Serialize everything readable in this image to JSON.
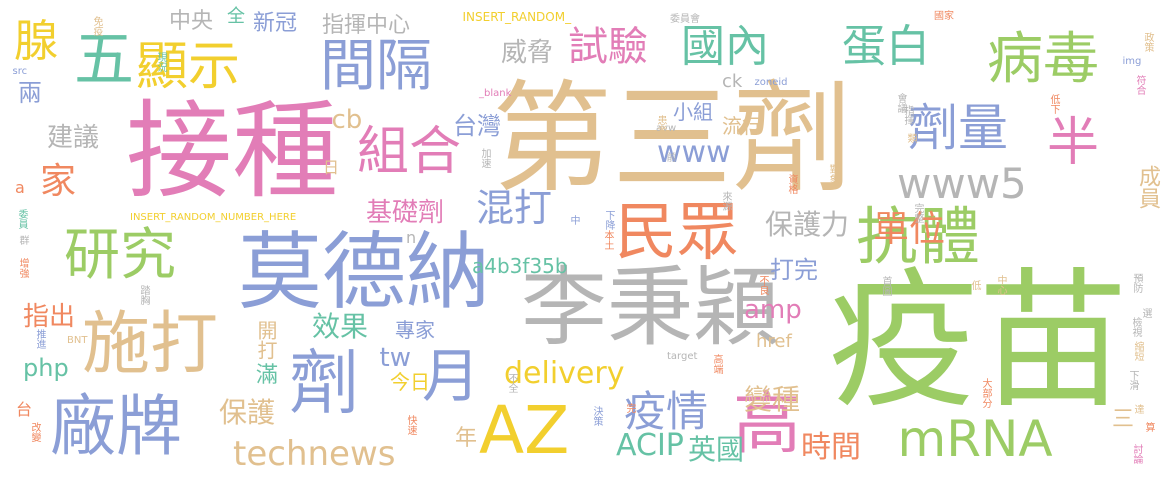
{
  "palette": {
    "green": "#9ccc65",
    "tan": "#e1c08f",
    "pink": "#e27db7",
    "blue": "#8b9ed6",
    "orange": "#f08860",
    "gray": "#b5b5b5",
    "yellow": "#f2cf2e",
    "teal": "#66c2a5"
  },
  "words": [
    {
      "text": "疫苗",
      "color": "green",
      "weight": 10
    },
    {
      "text": "第三劑",
      "color": "tan",
      "weight": 9
    },
    {
      "text": "接種",
      "color": "pink",
      "weight": 8
    },
    {
      "text": "李秉穎",
      "color": "gray",
      "weight": 7
    },
    {
      "text": "莫德納",
      "color": "blue",
      "weight": 7
    },
    {
      "text": "劑",
      "color": "blue",
      "weight": 6
    },
    {
      "text": "高",
      "color": "pink",
      "weight": 6
    },
    {
      "text": "AZ",
      "color": "yellow",
      "weight": 6
    },
    {
      "text": "施打",
      "color": "tan",
      "weight": 6
    },
    {
      "text": "廠牌",
      "color": "blue",
      "weight": 6
    },
    {
      "text": "月",
      "color": "blue",
      "weight": 6
    },
    {
      "text": "民眾",
      "color": "orange",
      "weight": 5
    },
    {
      "text": "抗體",
      "color": "green",
      "weight": 5
    },
    {
      "text": "研究",
      "color": "green",
      "weight": 5
    },
    {
      "text": "病毒",
      "color": "green",
      "weight": 5
    },
    {
      "text": "顯示",
      "color": "yellow",
      "weight": 5
    },
    {
      "text": "五",
      "color": "teal",
      "weight": 5
    },
    {
      "text": "間隔",
      "color": "blue",
      "weight": 5
    },
    {
      "text": "組合",
      "color": "pink",
      "weight": 5
    },
    {
      "text": "劑量",
      "color": "blue",
      "weight": 5
    },
    {
      "text": "半",
      "color": "pink",
      "weight": 5
    },
    {
      "text": "mRNA",
      "color": "green",
      "weight": 5
    },
    {
      "text": "www5",
      "color": "gray",
      "weight": 4
    },
    {
      "text": "國內",
      "color": "teal",
      "weight": 4
    },
    {
      "text": "蛋白",
      "color": "teal",
      "weight": 4
    },
    {
      "text": "試驗",
      "color": "pink",
      "weight": 4
    },
    {
      "text": "混打",
      "color": "blue",
      "weight": 4
    },
    {
      "text": "單位",
      "color": "orange",
      "weight": 4
    },
    {
      "text": "疫情",
      "color": "blue",
      "weight": 4
    },
    {
      "text": "腺",
      "color": "yellow",
      "weight": 4
    },
    {
      "text": "家",
      "color": "orange",
      "weight": 4
    },
    {
      "text": "technews",
      "color": "tan",
      "weight": 4
    },
    {
      "text": "www",
      "color": "blue",
      "weight": 4
    },
    {
      "text": "delivery",
      "color": "yellow",
      "weight": 3
    },
    {
      "text": "ACIP",
      "color": "teal",
      "weight": 3
    },
    {
      "text": "保護力",
      "color": "gray",
      "weight": 3
    },
    {
      "text": "基礎劑",
      "color": "pink",
      "weight": 3
    },
    {
      "text": "保護",
      "color": "tan",
      "weight": 3
    },
    {
      "text": "時間",
      "color": "orange",
      "weight": 3
    },
    {
      "text": "英國",
      "color": "teal",
      "weight": 3
    },
    {
      "text": "變種",
      "color": "tan",
      "weight": 3
    },
    {
      "text": "威脅",
      "color": "gray",
      "weight": 3
    },
    {
      "text": "建議",
      "color": "gray",
      "weight": 3
    },
    {
      "text": "台灣",
      "color": "blue",
      "weight": 3
    },
    {
      "text": "指出",
      "color": "orange",
      "weight": 3
    },
    {
      "text": "效果",
      "color": "teal",
      "weight": 3
    },
    {
      "text": "amp",
      "color": "pink",
      "weight": 3
    },
    {
      "text": "php",
      "color": "teal",
      "weight": 3
    },
    {
      "text": "cb",
      "color": "tan",
      "weight": 3
    },
    {
      "text": "tw",
      "color": "blue",
      "weight": 3
    },
    {
      "text": "打完",
      "color": "blue",
      "weight": 2
    },
    {
      "text": "年",
      "color": "tan",
      "weight": 2
    },
    {
      "text": "兩",
      "color": "blue",
      "weight": 2
    },
    {
      "text": "a4b3f35b",
      "color": "teal",
      "weight": 2
    },
    {
      "text": "流行",
      "color": "tan",
      "weight": 2
    },
    {
      "text": "小組",
      "color": "blue",
      "weight": 2
    },
    {
      "text": "專家",
      "color": "blue",
      "weight": 2
    },
    {
      "text": "開打",
      "color": "tan",
      "weight": 2
    },
    {
      "text": "滿",
      "color": "teal",
      "weight": 2
    },
    {
      "text": "今日",
      "color": "yellow",
      "weight": 2
    },
    {
      "text": "成員",
      "color": "tan",
      "weight": 2
    },
    {
      "text": "三",
      "color": "tan",
      "weight": 2
    },
    {
      "text": "中央",
      "color": "gray",
      "weight": 2
    },
    {
      "text": "新冠",
      "color": "blue",
      "weight": 2
    },
    {
      "text": "全",
      "color": "teal",
      "weight": 2
    },
    {
      "text": "指揮中心",
      "color": "gray",
      "weight": 2
    },
    {
      "text": "ck",
      "color": "gray",
      "weight": 2
    },
    {
      "text": "href",
      "color": "tan",
      "weight": 2
    },
    {
      "text": "a",
      "color": "orange",
      "weight": 2
    },
    {
      "text": "台",
      "color": "orange",
      "weight": 2
    },
    {
      "text": "n",
      "color": "gray",
      "weight": 2
    },
    {
      "text": "日",
      "color": "tan",
      "weight": 2
    },
    {
      "text": "INSERT_RANDOM_",
      "color": "yellow",
      "weight": 1
    },
    {
      "text": "INSERT_RANDOM_NUMBER_HERE",
      "color": "yellow",
      "weight": 1
    },
    {
      "text": "zoneid",
      "color": "blue",
      "weight": 1
    },
    {
      "text": "_blank",
      "color": "pink",
      "weight": 1
    },
    {
      "text": "avw",
      "color": "gray",
      "weight": 1
    },
    {
      "text": "src",
      "color": "blue",
      "weight": 1
    },
    {
      "text": "img",
      "color": "blue",
      "weight": 1
    },
    {
      "text": "target",
      "color": "gray",
      "weight": 1
    },
    {
      "text": "BNT",
      "color": "tan",
      "weight": 1
    },
    {
      "text": "委員會",
      "color": "gray",
      "weight": 1
    },
    {
      "text": "國家",
      "color": "orange",
      "weight": 1
    },
    {
      "text": "政策",
      "color": "tan",
      "weight": 1
    },
    {
      "text": "現況",
      "color": "teal",
      "weight": 1
    },
    {
      "text": "免疫",
      "color": "tan",
      "weight": 1
    },
    {
      "text": "符合",
      "color": "pink",
      "weight": 1
    },
    {
      "text": "會議",
      "color": "gray",
      "weight": 1
    },
    {
      "text": "低下",
      "color": "orange",
      "weight": 1
    },
    {
      "text": "指揮",
      "color": "gray",
      "weight": 1
    },
    {
      "text": "患者",
      "color": "tan",
      "weight": 1
    },
    {
      "text": "類",
      "color": "tan",
      "weight": 1
    },
    {
      "text": "加速",
      "color": "gray",
      "weight": 1
    },
    {
      "text": "前",
      "color": "gray",
      "weight": 1
    },
    {
      "text": "對象",
      "color": "tan",
      "weight": 1
    },
    {
      "text": "資格",
      "color": "orange",
      "weight": 1
    },
    {
      "text": "完整",
      "color": "gray",
      "weight": 1
    },
    {
      "text": "來源",
      "color": "gray",
      "weight": 1
    },
    {
      "text": "委員",
      "color": "teal",
      "weight": 1
    },
    {
      "text": "群",
      "color": "gray",
      "weight": 1
    },
    {
      "text": "增強",
      "color": "orange",
      "weight": 1
    },
    {
      "text": "中",
      "color": "blue",
      "weight": 1
    },
    {
      "text": "下降",
      "color": "blue",
      "weight": 1
    },
    {
      "text": "本土",
      "color": "orange",
      "weight": 1
    },
    {
      "text": "預防",
      "color": "gray",
      "weight": 1
    },
    {
      "text": "踏胸",
      "color": "gray",
      "weight": 1
    },
    {
      "text": "不良",
      "color": "orange",
      "weight": 1
    },
    {
      "text": "首圖",
      "color": "gray",
      "weight": 1
    },
    {
      "text": "低",
      "color": "tan",
      "weight": 1
    },
    {
      "text": "中心",
      "color": "tan",
      "weight": 1
    },
    {
      "text": "選",
      "color": "gray",
      "weight": 1
    },
    {
      "text": "推進",
      "color": "blue",
      "weight": 1
    },
    {
      "text": "檢視",
      "color": "gray",
      "weight": 1
    },
    {
      "text": "縮短",
      "color": "tan",
      "weight": 1
    },
    {
      "text": "高端",
      "color": "orange",
      "weight": 1
    },
    {
      "text": "不全",
      "color": "gray",
      "weight": 1
    },
    {
      "text": "大部分",
      "color": "orange",
      "weight": 1
    },
    {
      "text": "下滑",
      "color": "gray",
      "weight": 1
    },
    {
      "text": "完",
      "color": "orange",
      "weight": 1
    },
    {
      "text": "決策",
      "color": "blue",
      "weight": 1
    },
    {
      "text": "快速",
      "color": "orange",
      "weight": 1
    },
    {
      "text": "達",
      "color": "tan",
      "weight": 1
    },
    {
      "text": "算",
      "color": "orange",
      "weight": 1
    },
    {
      "text": "改變",
      "color": "orange",
      "weight": 1
    },
    {
      "text": "討論",
      "color": "pink",
      "weight": 1
    }
  ]
}
